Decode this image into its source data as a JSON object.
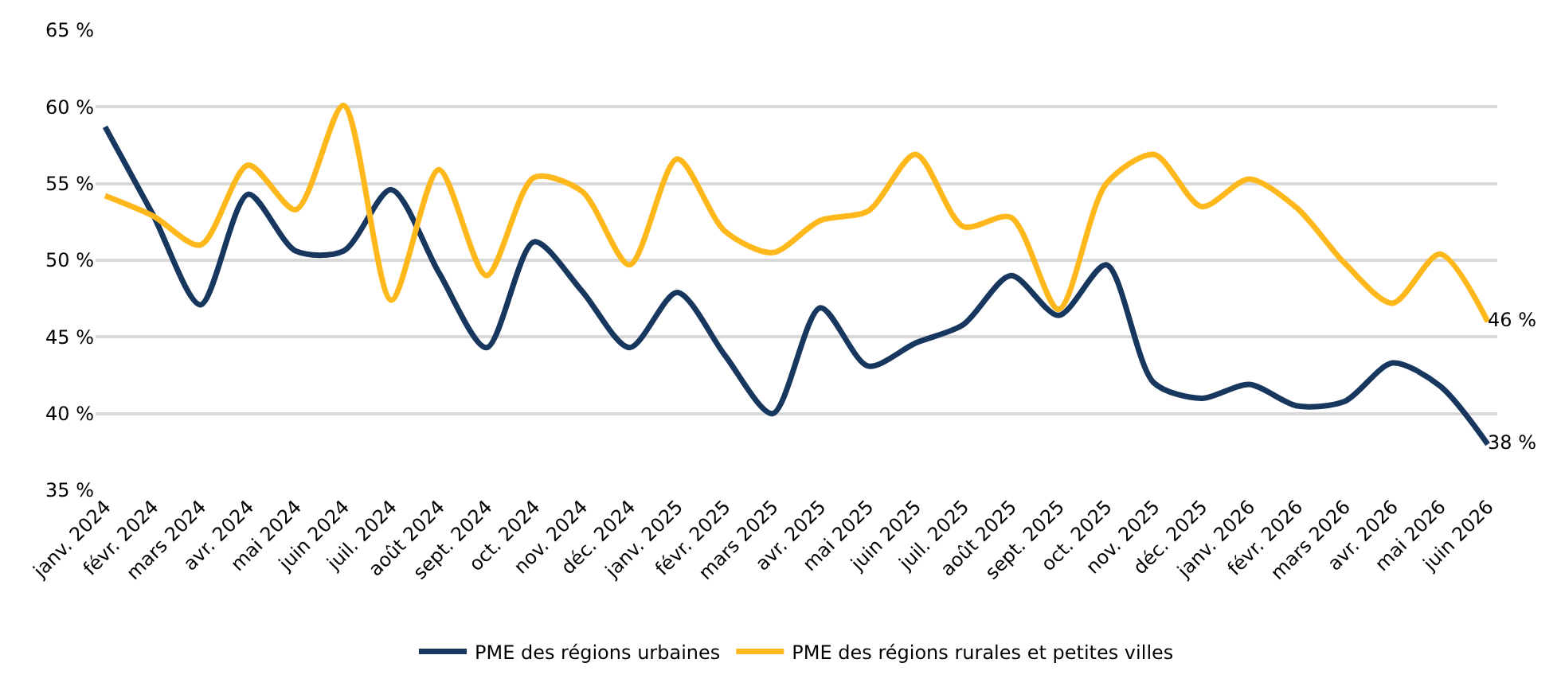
{
  "chart_data": {
    "type": "line",
    "categories": [
      "janv. 2024",
      "févr. 2024",
      "mars 2024",
      "avr. 2024",
      "mai 2024",
      "juin 2024",
      "juil. 2024",
      "août 2024",
      "sept. 2024",
      "oct. 2024",
      "nov. 2024",
      "déc. 2024",
      "janv. 2025",
      "févr. 2025",
      "mars 2025",
      "avr. 2025",
      "mai 2025",
      "juin 2025",
      "juil. 2025",
      "août 2025",
      "sept. 2025",
      "oct. 2025",
      "nov. 2025",
      "déc. 2025",
      "janv. 2026",
      "févr. 2026",
      "mars 2026",
      "avr. 2026",
      "mai 2026",
      "juin 2026"
    ],
    "series": [
      {
        "name": "PME des régions urbaines",
        "color": "#17375e",
        "values": [
          58.7,
          53,
          47.1,
          54.3,
          50.6,
          50.6,
          54.6,
          49.2,
          44.3,
          51.2,
          48,
          44.3,
          47.9,
          43.8,
          40,
          46.9,
          43.1,
          44.6,
          45.8,
          49,
          46.4,
          49.7,
          42,
          41,
          41.9,
          40.5,
          40.8,
          43.3,
          41.8,
          38
        ],
        "value_labels": [
          null,
          null,
          null,
          null,
          null,
          null,
          null,
          null,
          null,
          null,
          null,
          null,
          null,
          null,
          null,
          null,
          null,
          null,
          null,
          null,
          null,
          null,
          null,
          null,
          null,
          null,
          null,
          null,
          null,
          "38 %"
        ]
      },
      {
        "name": "PME des régions rurales et petites villes",
        "color": "#ffb81c",
        "values": [
          54.2,
          52.9,
          51,
          56.2,
          53.3,
          60.1,
          47.4,
          55.9,
          49,
          55.4,
          54.5,
          49.7,
          56.6,
          51.9,
          50.5,
          52.6,
          53.2,
          56.9,
          52.2,
          52.8,
          46.8,
          55,
          56.9,
          53.5,
          55.3,
          53.4,
          49.8,
          47.2,
          50.4,
          46
        ],
        "value_labels": [
          null,
          null,
          null,
          null,
          null,
          null,
          null,
          null,
          null,
          null,
          null,
          null,
          null,
          null,
          null,
          null,
          null,
          null,
          null,
          null,
          null,
          null,
          null,
          null,
          null,
          null,
          null,
          null,
          null,
          "46 %"
        ]
      }
    ],
    "ylim": [
      35,
      65
    ],
    "yticks": [
      {
        "value": 35,
        "label": "35 %"
      },
      {
        "value": 40,
        "label": "40 %"
      },
      {
        "value": 45,
        "label": "45 %"
      },
      {
        "value": 50,
        "label": "50 %"
      },
      {
        "value": 55,
        "label": "55 %"
      },
      {
        "value": 60,
        "label": "60 %"
      },
      {
        "value": 65,
        "label": "65 %"
      }
    ],
    "grid": "y",
    "legend": "bottom",
    "marker": "none",
    "line_style": "solid"
  }
}
